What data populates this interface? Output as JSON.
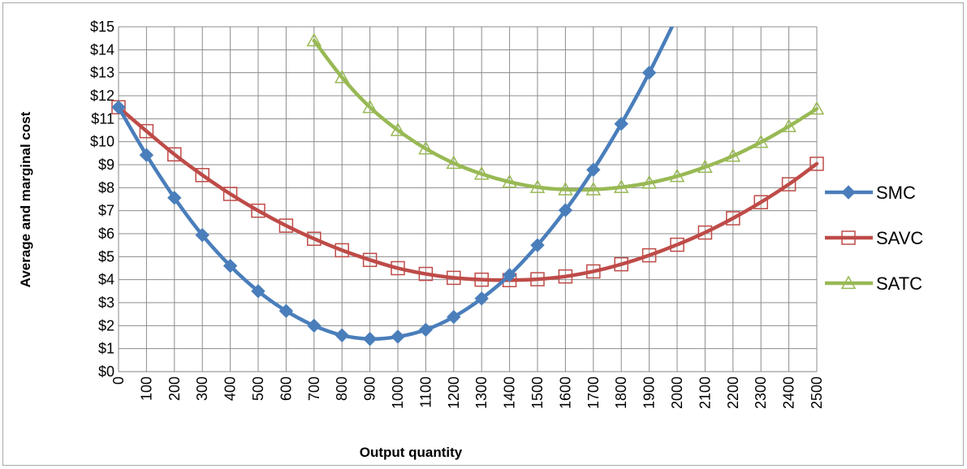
{
  "chart_data": {
    "type": "line",
    "xlabel": "Output quantity",
    "ylabel": "Average and marginal cost",
    "xlim": [
      0,
      2500
    ],
    "ylim": [
      0,
      15
    ],
    "x_ticks": [
      "0",
      "100",
      "200",
      "300",
      "400",
      "500",
      "600",
      "700",
      "800",
      "900",
      "1000",
      "1100",
      "1200",
      "1300",
      "1400",
      "1500",
      "1600",
      "1700",
      "1800",
      "1900",
      "2000",
      "2100",
      "2200",
      "2300",
      "2400",
      "2500"
    ],
    "y_ticks": [
      "$0",
      "$1",
      "$2",
      "$3",
      "$4",
      "$5",
      "$6",
      "$7",
      "$8",
      "$9",
      "$10",
      "$11",
      "$12",
      "$13",
      "$14",
      "$15"
    ],
    "grid": true,
    "legend_position": "right",
    "series": [
      {
        "name": "SMC",
        "color": "#4a7ebb",
        "marker": "diamond",
        "x": [
          0,
          100,
          200,
          300,
          400,
          500,
          600,
          700,
          800,
          900,
          1000,
          1100,
          1200,
          1300,
          1400,
          1500,
          1600,
          1700,
          1800,
          1900,
          2000
        ],
        "values": [
          11.5,
          9.42,
          7.56,
          5.94,
          4.6,
          3.5,
          2.64,
          2.0,
          1.58,
          1.42,
          1.52,
          1.82,
          2.38,
          3.18,
          4.2,
          5.5,
          7.02,
          8.78,
          10.78,
          13.0,
          15.46
        ]
      },
      {
        "name": "SAVC",
        "color": "#be4b48",
        "marker": "square",
        "x": [
          0,
          100,
          200,
          300,
          400,
          500,
          600,
          700,
          800,
          900,
          1000,
          1100,
          1200,
          1300,
          1400,
          1500,
          1600,
          1700,
          1800,
          1900,
          2000,
          2100,
          2200,
          2300,
          2400,
          2500
        ],
        "values": [
          11.5,
          10.46,
          9.45,
          8.55,
          7.73,
          7.0,
          6.35,
          5.78,
          5.28,
          4.86,
          4.5,
          4.25,
          4.08,
          4.0,
          3.98,
          4.02,
          4.14,
          4.36,
          4.67,
          5.06,
          5.52,
          6.05,
          6.67,
          7.37,
          8.15,
          9.04
        ]
      },
      {
        "name": "SATC",
        "color": "#98b954",
        "marker": "triangle",
        "x": [
          700,
          800,
          900,
          1000,
          1100,
          1200,
          1300,
          1400,
          1500,
          1600,
          1700,
          1800,
          1900,
          2000,
          2100,
          2200,
          2300,
          2400,
          2500
        ],
        "values": [
          14.4,
          12.8,
          11.5,
          10.5,
          9.7,
          9.07,
          8.6,
          8.25,
          8.02,
          7.92,
          7.92,
          8.02,
          8.21,
          8.5,
          8.9,
          9.38,
          9.98,
          10.67,
          11.43
        ]
      }
    ]
  }
}
